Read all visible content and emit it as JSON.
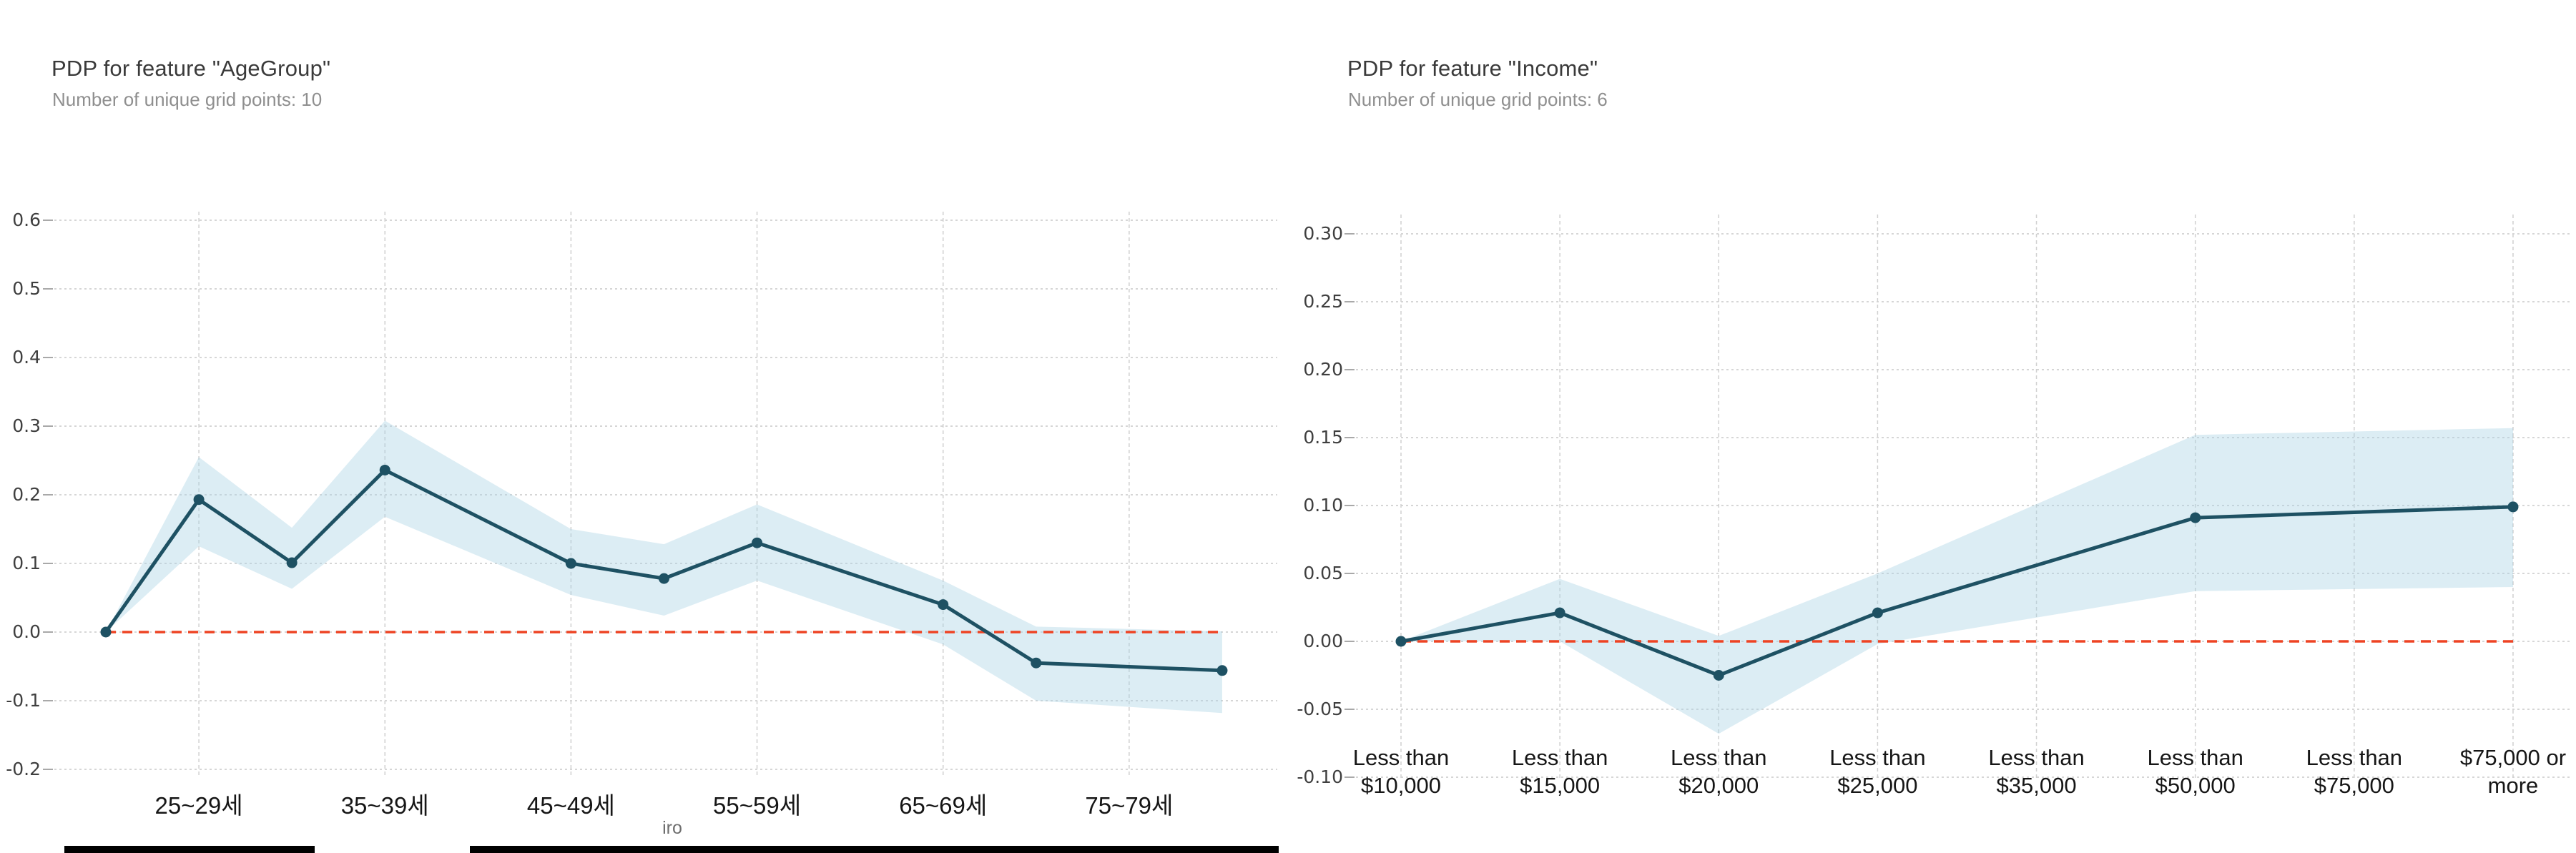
{
  "page": {
    "background": "#ffffff",
    "bottom_bar_color": "#000000"
  },
  "chart_data": [
    {
      "type": "line",
      "title": "PDP for feature \"AgeGroup\"",
      "subtitle": "Number of unique grid points: 10",
      "axis_note": "iro",
      "legend_position": "none",
      "grid": "on",
      "ylim": [
        -0.2,
        0.6
      ],
      "zero_line": 0.0,
      "colors": {
        "line": "#1e5163",
        "band": "rgba(168,210,228,0.40)",
        "zero": "#ee4323",
        "grid_h": "#c9c9c9",
        "grid_v": "#d0d0d0",
        "tick": "#a9a9a9"
      },
      "y_ticks": [
        {
          "label": "0.6",
          "value": 0.6
        },
        {
          "label": "0.5",
          "value": 0.5
        },
        {
          "label": "0.4",
          "value": 0.4
        },
        {
          "label": "0.3",
          "value": 0.3
        },
        {
          "label": "0.2",
          "value": 0.2
        },
        {
          "label": "0.1",
          "value": 0.1
        },
        {
          "label": "0.0",
          "value": 0.0
        },
        {
          "label": "-0.1",
          "value": -0.1
        },
        {
          "label": "-0.2",
          "value": -0.2
        }
      ],
      "x_ticks": [
        {
          "slot": 1,
          "lines": [
            "25~29세"
          ]
        },
        {
          "slot": 3,
          "lines": [
            "35~39세"
          ]
        },
        {
          "slot": 5,
          "lines": [
            "45~49세"
          ]
        },
        {
          "slot": 7,
          "lines": [
            "55~59세"
          ]
        },
        {
          "slot": 9,
          "lines": [
            "65~69세"
          ]
        },
        {
          "slot": 11,
          "lines": [
            "75~79세"
          ]
        }
      ],
      "points": [
        {
          "slot": 0,
          "value": 0.0,
          "lo": 0.0,
          "hi": 0.0
        },
        {
          "slot": 1,
          "value": 0.193,
          "lo": 0.125,
          "hi": 0.255
        },
        {
          "slot": 2,
          "value": 0.101,
          "lo": 0.063,
          "hi": 0.152
        },
        {
          "slot": 3,
          "value": 0.236,
          "lo": 0.168,
          "hi": 0.308
        },
        {
          "slot": 5,
          "value": 0.1,
          "lo": 0.054,
          "hi": 0.15
        },
        {
          "slot": 6,
          "value": 0.078,
          "lo": 0.024,
          "hi": 0.128
        },
        {
          "slot": 7,
          "value": 0.13,
          "lo": 0.075,
          "hi": 0.186
        },
        {
          "slot": 9,
          "value": 0.04,
          "lo": -0.018,
          "hi": 0.075
        },
        {
          "slot": 10,
          "value": -0.045,
          "lo": -0.1,
          "hi": 0.008
        },
        {
          "slot": 12,
          "value": -0.056,
          "lo": -0.118,
          "hi": 0.001
        }
      ]
    },
    {
      "type": "line",
      "title": "PDP for feature \"Income\"",
      "subtitle": "Number of unique grid points: 6",
      "legend_position": "none",
      "grid": "on",
      "ylim": [
        -0.1,
        0.3
      ],
      "zero_line": 0.0,
      "colors": {
        "line": "#1e5163",
        "band": "rgba(168,210,228,0.40)",
        "zero": "#ee4323",
        "grid_h": "#c9c9c9",
        "grid_v": "#d0d0d0",
        "tick": "#a9a9a9"
      },
      "y_ticks": [
        {
          "label": "0.30",
          "value": 0.3
        },
        {
          "label": "0.25",
          "value": 0.25
        },
        {
          "label": "0.20",
          "value": 0.2
        },
        {
          "label": "0.15",
          "value": 0.15
        },
        {
          "label": "0.10",
          "value": 0.1
        },
        {
          "label": "0.05",
          "value": 0.05
        },
        {
          "label": "0.00",
          "value": 0.0
        },
        {
          "label": "-0.05",
          "value": -0.05
        },
        {
          "label": "-0.10",
          "value": -0.1
        }
      ],
      "x_ticks": [
        {
          "slot": 0,
          "lines": [
            "Less than",
            "$10,000"
          ]
        },
        {
          "slot": 1,
          "lines": [
            "Less than",
            "$15,000"
          ]
        },
        {
          "slot": 2,
          "lines": [
            "Less than",
            "$20,000"
          ]
        },
        {
          "slot": 3,
          "lines": [
            "Less than",
            "$25,000"
          ]
        },
        {
          "slot": 4,
          "lines": [
            "Less than",
            "$35,000"
          ]
        },
        {
          "slot": 5,
          "lines": [
            "Less than",
            "$50,000"
          ]
        },
        {
          "slot": 6,
          "lines": [
            "Less than",
            "$75,000"
          ]
        },
        {
          "slot": 7,
          "lines": [
            "$75,000 or",
            "more"
          ]
        }
      ],
      "points": [
        {
          "slot": 0,
          "value": 0.0,
          "lo": 0.0,
          "hi": 0.0
        },
        {
          "slot": 1,
          "value": 0.021,
          "lo": 0.0,
          "hi": 0.046
        },
        {
          "slot": 2,
          "value": -0.025,
          "lo": -0.068,
          "hi": 0.004
        },
        {
          "slot": 3,
          "value": 0.021,
          "lo": -0.002,
          "hi": 0.05
        },
        {
          "slot": 5,
          "value": 0.091,
          "lo": 0.037,
          "hi": 0.152
        },
        {
          "slot": 7,
          "value": 0.099,
          "lo": 0.04,
          "hi": 0.157
        }
      ]
    }
  ]
}
